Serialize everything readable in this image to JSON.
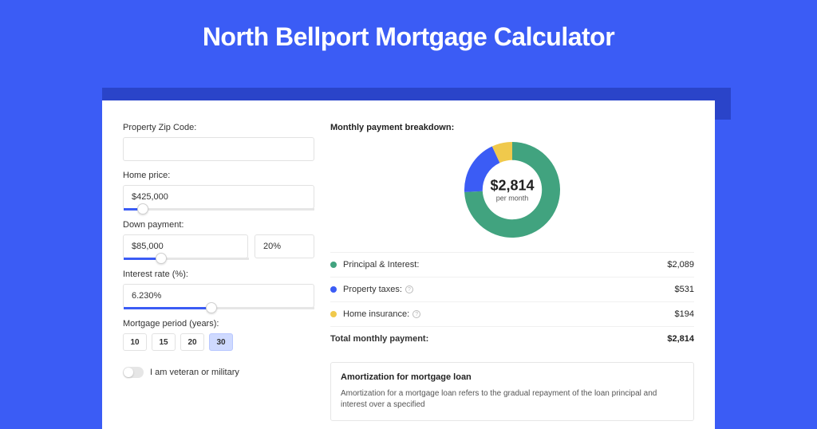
{
  "page": {
    "title": "North Bellport Mortgage Calculator",
    "colors": {
      "bg": "#3b5cf5",
      "dark_strip": "#2a44c9",
      "card_bg": "#ffffff"
    }
  },
  "form": {
    "zip": {
      "label": "Property Zip Code:",
      "value": ""
    },
    "home_price": {
      "label": "Home price:",
      "value": "$425,000",
      "slider_pct": 10
    },
    "down_payment": {
      "label": "Down payment:",
      "amount": "$85,000",
      "percent": "20%",
      "slider_pct": 30
    },
    "interest": {
      "label": "Interest rate (%):",
      "value": "6.230%",
      "slider_pct": 46
    },
    "period": {
      "label": "Mortgage period (years):",
      "options": [
        "10",
        "15",
        "20",
        "30"
      ],
      "selected": "30"
    },
    "veteran": {
      "label": "I am veteran or military",
      "checked": false
    }
  },
  "breakdown": {
    "title": "Monthly payment breakdown:",
    "center_value": "$2,814",
    "center_sub": "per month",
    "chart": {
      "type": "donut",
      "size": 120,
      "inner_radius_ratio": 0.62,
      "slices": [
        {
          "key": "principal_interest",
          "value": 2089,
          "color": "#41a37f"
        },
        {
          "key": "property_taxes",
          "value": 531,
          "color": "#3b5cf5"
        },
        {
          "key": "home_insurance",
          "value": 194,
          "color": "#f0c94c"
        }
      ],
      "background": "#ffffff"
    },
    "rows": [
      {
        "dot": "#41a37f",
        "label": "Principal & Interest:",
        "info": false,
        "value": "$2,089"
      },
      {
        "dot": "#3b5cf5",
        "label": "Property taxes:",
        "info": true,
        "value": "$531"
      },
      {
        "dot": "#f0c94c",
        "label": "Home insurance:",
        "info": true,
        "value": "$194"
      }
    ],
    "total": {
      "label": "Total monthly payment:",
      "value": "$2,814"
    }
  },
  "amort": {
    "title": "Amortization for mortgage loan",
    "text": "Amortization for a mortgage loan refers to the gradual repayment of the loan principal and interest over a specified"
  }
}
